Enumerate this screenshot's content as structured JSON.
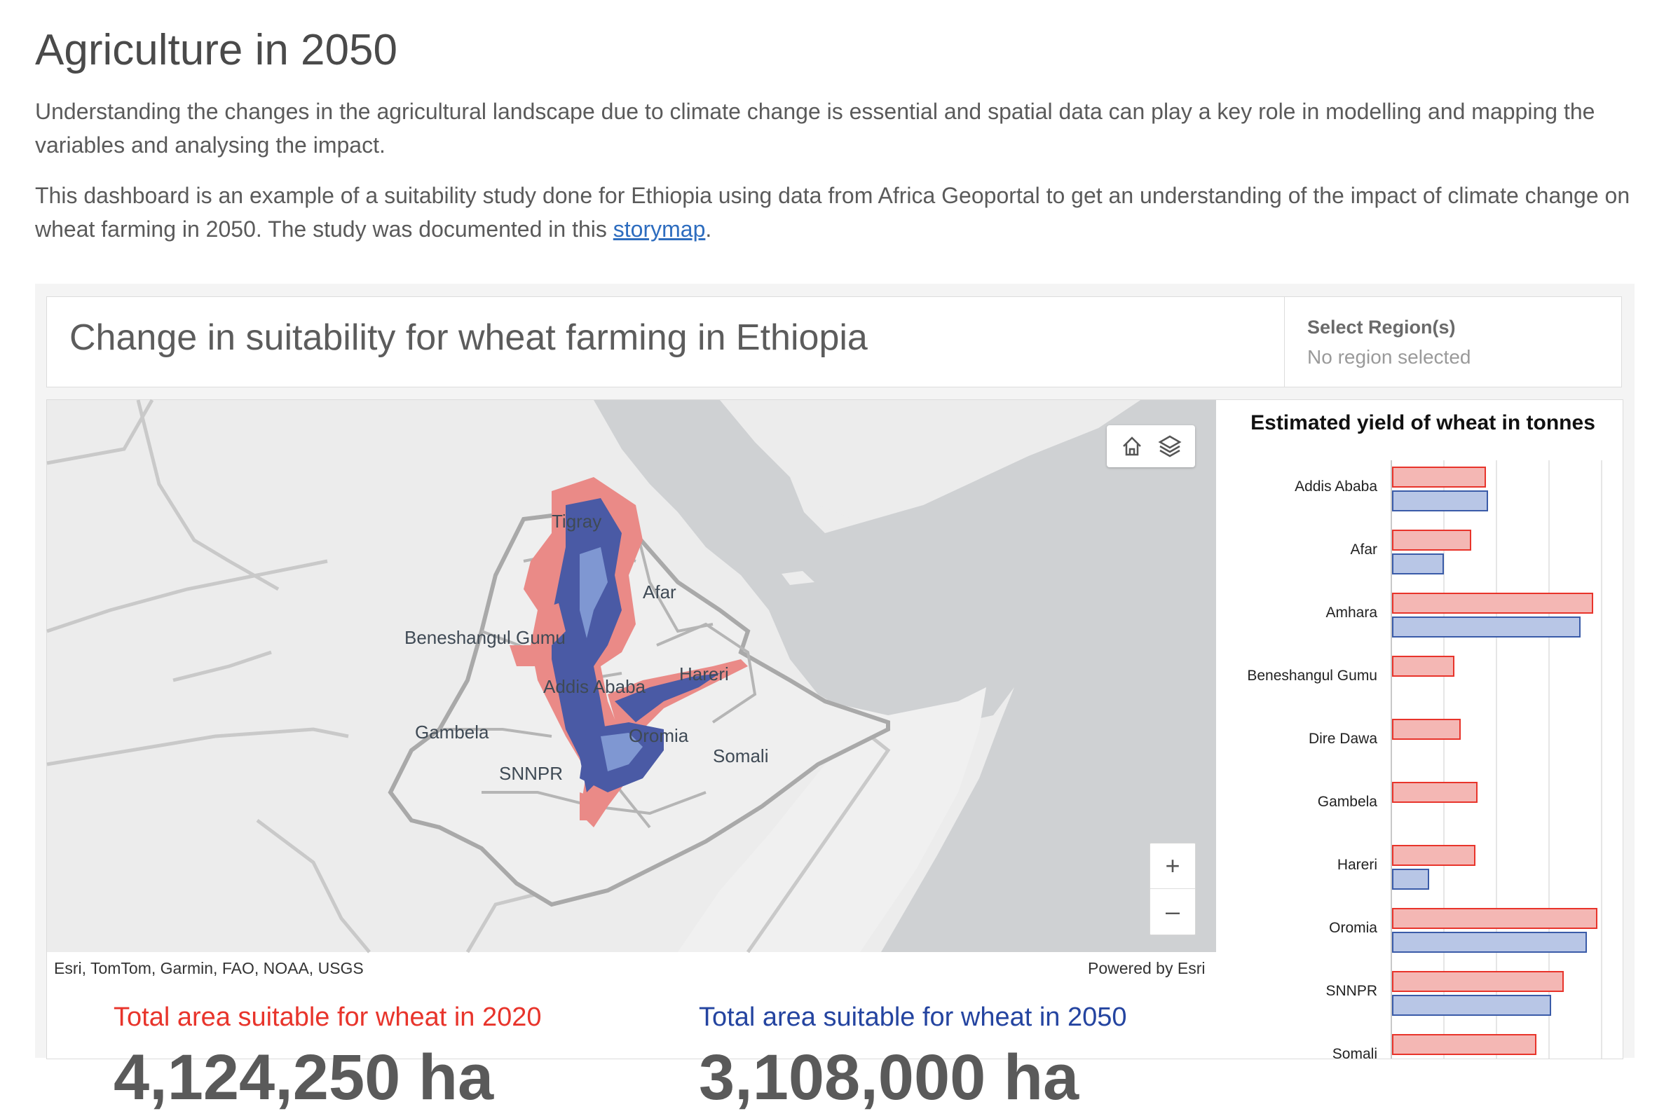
{
  "page": {
    "title": "Agriculture in 2050",
    "intro1": "Understanding the changes in the agricultural landscape due to climate change is essential and spatial data can play a key role in modelling and mapping the variables and analysing the impact.",
    "intro2_before": "This dashboard is an example of a suitability study done for Ethiopia using data from Africa Geoportal to get an understanding of the impact of climate change on wheat farming in 2050. The study was documented in this ",
    "intro2_link": "storymap",
    "intro2_after": "."
  },
  "dashboard": {
    "header_title": "Change in suitability for wheat farming in Ethiopia",
    "region_label": "Select Region(s)",
    "region_value": "No region selected"
  },
  "map": {
    "attribution": "Esri, TomTom, Garmin, FAO, NOAA, USGS",
    "powered_by": "Powered by Esri",
    "labels": [
      "Tigray",
      "Afar",
      "Beneshangul Gumu",
      "Addis Ababa",
      "Hareri",
      "Gambela",
      "Oromia",
      "Somali",
      "SNNPR"
    ],
    "zoom_in": "+",
    "zoom_out": "–",
    "icons": [
      "home-icon",
      "layers-icon"
    ]
  },
  "stats": {
    "label_2020": "Total area suitable for wheat in 2020",
    "label_2050": "Total area suitable for wheat in 2050",
    "value_2020": "4,124,250 ha",
    "value_2050": "3,108,000 ha",
    "color_2020": "#e8342b",
    "color_2050": "#2444a0"
  },
  "chart_data": {
    "type": "bar",
    "title": "Estimated yield of wheat in tonnes",
    "categories": [
      "Addis Ababa",
      "Afar",
      "Amhara",
      "Beneshangul Gumu",
      "Dire Dawa",
      "Gambela",
      "Hareri",
      "Oromia",
      "SNNPR",
      "Somali"
    ],
    "series": [
      {
        "values": [
          0.44,
          0.37,
          0.95,
          0.29,
          0.32,
          0.4,
          0.39,
          0.97,
          0.81,
          0.68
        ],
        "color": "#f4b7b4",
        "stroke": "#e8342b"
      },
      {
        "values": [
          0.45,
          0.24,
          0.89,
          null,
          null,
          null,
          0.17,
          0.92,
          0.75,
          null
        ],
        "color": "#b8c6e6",
        "stroke": "#3a5ba8"
      }
    ],
    "xlabel": "",
    "ylabel": "",
    "grid": true
  }
}
